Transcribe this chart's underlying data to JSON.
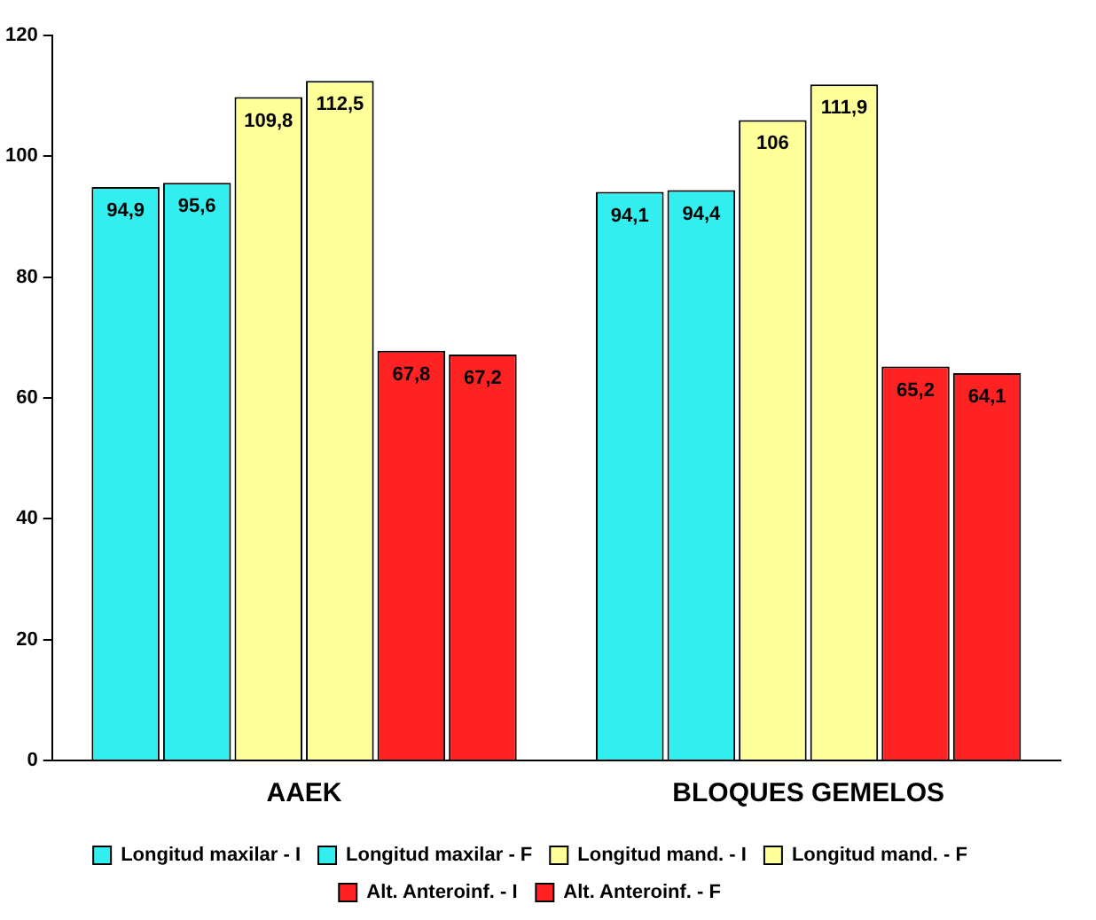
{
  "chart_data": {
    "type": "bar",
    "categories": [
      "AAEK",
      "BLOQUES GEMELOS"
    ],
    "series": [
      {
        "name": "Longitud maxilar - I",
        "color": "#33eeee",
        "values": [
          94.9,
          94.1
        ],
        "value_labels": [
          "94,9",
          "94,1"
        ]
      },
      {
        "name": "Longitud maxilar - F",
        "color": "#33eeee",
        "values": [
          95.6,
          94.4
        ],
        "value_labels": [
          "95,6",
          "94,4"
        ]
      },
      {
        "name": "Longitud mand. - I",
        "color": "#ffff99",
        "values": [
          109.8,
          106
        ],
        "value_labels": [
          "109,8",
          "106"
        ]
      },
      {
        "name": "Longitud mand. - F",
        "color": "#ffff99",
        "values": [
          112.5,
          111.9
        ],
        "value_labels": [
          "112,5",
          "111,9"
        ]
      },
      {
        "name": "Alt. Anteroinf. - I",
        "color": "#ff2222",
        "values": [
          67.8,
          65.2
        ],
        "value_labels": [
          "67,8",
          "65,2"
        ]
      },
      {
        "name": "Alt. Anteroinf. - F",
        "color": "#ff2222",
        "values": [
          67.2,
          64.1
        ],
        "value_labels": [
          "67,2",
          "64,1"
        ]
      }
    ],
    "ylim": [
      0,
      120
    ],
    "yticks": [
      0,
      20,
      40,
      60,
      80,
      100,
      120
    ],
    "grid": false,
    "legend": "bottom"
  }
}
